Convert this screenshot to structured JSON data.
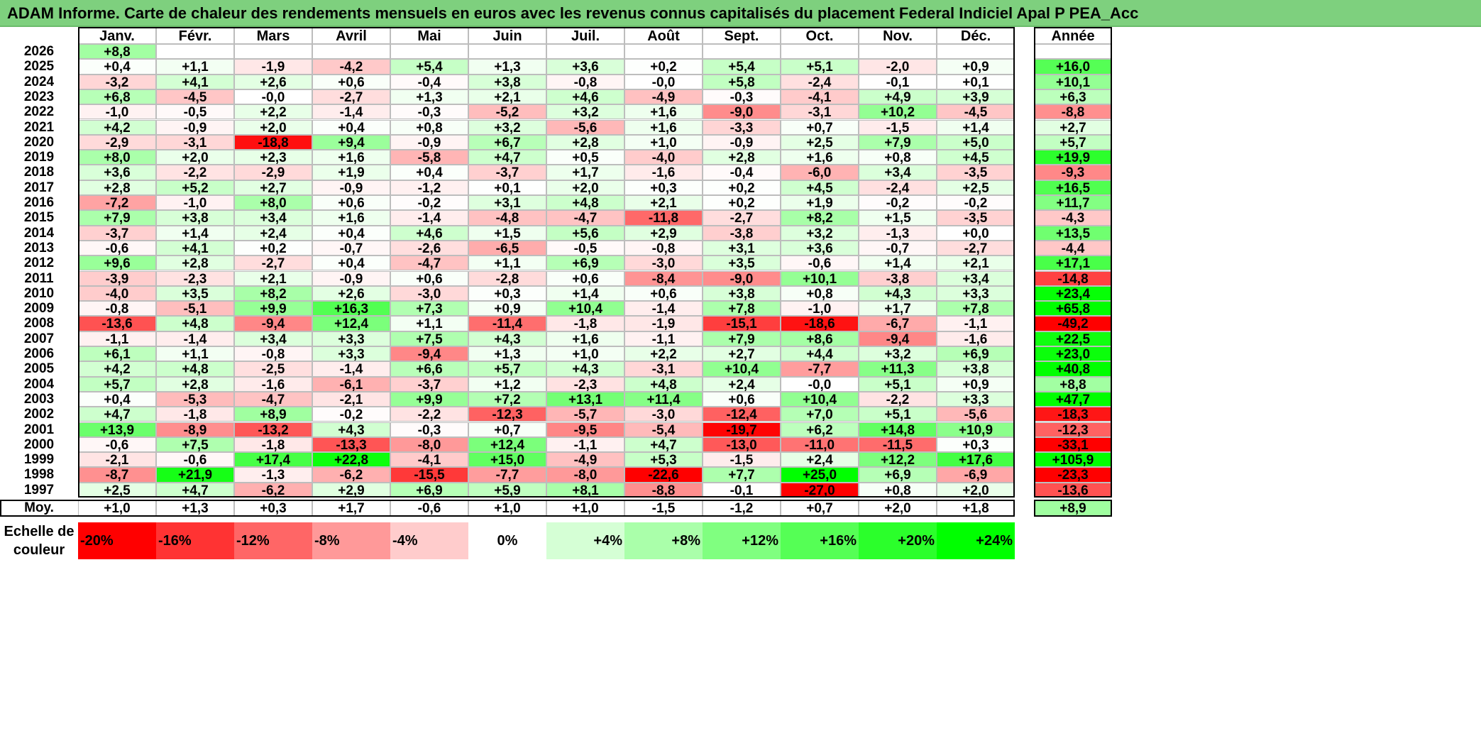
{
  "title": "ADAM Informe. Carte de chaleur des rendements mensuels en euros avec les revenus connus capitalisés du placement Federal Indiciel Apal P PEA_Acc",
  "chart_data": {
    "type": "heatmap",
    "columns": [
      "Janv.",
      "Févr.",
      "Mars",
      "Avril",
      "Mai",
      "Juin",
      "Juil.",
      "Août",
      "Sept.",
      "Oct.",
      "Nov.",
      "Déc."
    ],
    "annual_label": "Année",
    "rows": [
      {
        "year": "2026",
        "months": [
          "+8,8",
          "",
          "",
          "",
          "",
          "",
          "",
          "",
          "",
          "",
          "",
          ""
        ],
        "annual": ""
      },
      {
        "year": "2025",
        "months": [
          "+0,4",
          "+1,1",
          "-1,9",
          "-4,2",
          "+5,4",
          "+1,3",
          "+3,6",
          "+0,2",
          "+5,4",
          "+5,1",
          "-2,0",
          "+0,9"
        ],
        "annual": "+16,0"
      },
      {
        "year": "2024",
        "months": [
          "-3,2",
          "+4,1",
          "+2,6",
          "+0,6",
          "-0,4",
          "+3,8",
          "-0,8",
          "-0,0",
          "+5,8",
          "-2,4",
          "-0,1",
          "+0,1"
        ],
        "annual": "+10,1"
      },
      {
        "year": "2023",
        "months": [
          "+6,8",
          "-4,5",
          "-0,0",
          "-2,7",
          "+1,3",
          "+2,1",
          "+4,6",
          "-4,9",
          "-0,3",
          "-4,1",
          "+4,9",
          "+3,9"
        ],
        "annual": "+6,3"
      },
      {
        "year": "2022",
        "months": [
          "-1,0",
          "-0,5",
          "+2,2",
          "-1,4",
          "-0,3",
          "-5,2",
          "+3,2",
          "+1,6",
          "-9,0",
          "-3,1",
          "+10,2",
          "-4,5"
        ],
        "annual": "-8,8"
      },
      {
        "year": "2021",
        "months": [
          "+4,2",
          "-0,9",
          "+2,0",
          "+0,4",
          "+0,8",
          "+3,2",
          "-5,6",
          "+1,6",
          "-3,3",
          "+0,7",
          "-1,5",
          "+1,4"
        ],
        "annual": "+2,7"
      },
      {
        "year": "2020",
        "months": [
          "-2,9",
          "-3,1",
          "-18,8",
          "+9,4",
          "-0,9",
          "+6,7",
          "+2,8",
          "+1,0",
          "-0,9",
          "+2,5",
          "+7,9",
          "+5,0"
        ],
        "annual": "+5,7"
      },
      {
        "year": "2019",
        "months": [
          "+8,0",
          "+2,0",
          "+2,3",
          "+1,6",
          "-5,8",
          "+4,7",
          "+0,5",
          "-4,0",
          "+2,8",
          "+1,6",
          "+0,8",
          "+4,5"
        ],
        "annual": "+19,9"
      },
      {
        "year": "2018",
        "months": [
          "+3,6",
          "-2,2",
          "-2,9",
          "+1,9",
          "+0,4",
          "-3,7",
          "+1,7",
          "-1,6",
          "-0,4",
          "-6,0",
          "+3,4",
          "-3,5"
        ],
        "annual": "-9,3"
      },
      {
        "year": "2017",
        "months": [
          "+2,8",
          "+5,2",
          "+2,7",
          "-0,9",
          "-1,2",
          "+0,1",
          "+2,0",
          "+0,3",
          "+0,2",
          "+4,5",
          "-2,4",
          "+2,5"
        ],
        "annual": "+16,5"
      },
      {
        "year": "2016",
        "months": [
          "-7,2",
          "-1,0",
          "+8,0",
          "+0,6",
          "-0,2",
          "+3,1",
          "+4,8",
          "+2,1",
          "+0,2",
          "+1,9",
          "-0,2",
          "-0,2"
        ],
        "annual": "+11,7"
      },
      {
        "year": "2015",
        "months": [
          "+7,9",
          "+3,8",
          "+3,4",
          "+1,6",
          "-1,4",
          "-4,8",
          "-4,7",
          "-11,8",
          "-2,7",
          "+8,2",
          "+1,5",
          "-3,5"
        ],
        "annual": "-4,3"
      },
      {
        "year": "2014",
        "months": [
          "-3,7",
          "+1,4",
          "+2,4",
          "+0,4",
          "+4,6",
          "+1,5",
          "+5,6",
          "+2,9",
          "-3,8",
          "+3,2",
          "-1,3",
          "+0,0"
        ],
        "annual": "+13,5"
      },
      {
        "year": "2013",
        "months": [
          "-0,6",
          "+4,1",
          "+0,2",
          "-0,7",
          "-2,6",
          "-6,5",
          "-0,5",
          "-0,8",
          "+3,1",
          "+3,6",
          "-0,7",
          "-2,7"
        ],
        "annual": "-4,4"
      },
      {
        "year": "2012",
        "months": [
          "+9,6",
          "+2,8",
          "-2,7",
          "+0,4",
          "-4,7",
          "+1,1",
          "+6,9",
          "-3,0",
          "+3,5",
          "-0,6",
          "+1,4",
          "+2,1"
        ],
        "annual": "+17,1"
      },
      {
        "year": "2011",
        "months": [
          "-3,9",
          "-2,3",
          "+2,1",
          "-0,9",
          "+0,6",
          "-2,8",
          "+0,6",
          "-8,4",
          "-9,0",
          "+10,1",
          "-3,8",
          "+3,4"
        ],
        "annual": "-14,8"
      },
      {
        "year": "2010",
        "months": [
          "-4,0",
          "+3,5",
          "+8,2",
          "+2,6",
          "-3,0",
          "+0,3",
          "+1,4",
          "+0,6",
          "+3,8",
          "+0,8",
          "+4,3",
          "+3,3"
        ],
        "annual": "+23,4"
      },
      {
        "year": "2009",
        "months": [
          "-0,8",
          "-5,1",
          "+9,9",
          "+16,3",
          "+7,3",
          "+0,9",
          "+10,4",
          "-1,4",
          "+7,8",
          "-1,0",
          "+1,7",
          "+7,8"
        ],
        "annual": "+65,8"
      },
      {
        "year": "2008",
        "months": [
          "-13,6",
          "+4,8",
          "-9,4",
          "+12,4",
          "+1,1",
          "-11,4",
          "-1,8",
          "-1,9",
          "-15,1",
          "-18,6",
          "-6,7",
          "-1,1"
        ],
        "annual": "-49,2"
      },
      {
        "year": "2007",
        "months": [
          "-1,1",
          "-1,4",
          "+3,4",
          "+3,3",
          "+7,5",
          "+4,3",
          "+1,6",
          "-1,1",
          "+7,9",
          "+8,6",
          "-9,4",
          "-1,6"
        ],
        "annual": "+22,5"
      },
      {
        "year": "2006",
        "months": [
          "+6,1",
          "+1,1",
          "-0,8",
          "+3,3",
          "-9,4",
          "+1,3",
          "+1,0",
          "+2,2",
          "+2,7",
          "+4,4",
          "+3,2",
          "+6,9"
        ],
        "annual": "+23,0"
      },
      {
        "year": "2005",
        "months": [
          "+4,2",
          "+4,8",
          "-2,5",
          "-1,4",
          "+6,6",
          "+5,7",
          "+4,3",
          "-3,1",
          "+10,4",
          "-7,7",
          "+11,3",
          "+3,8"
        ],
        "annual": "+40,8"
      },
      {
        "year": "2004",
        "months": [
          "+5,7",
          "+2,8",
          "-1,6",
          "-6,1",
          "-3,7",
          "+1,2",
          "-2,3",
          "+4,8",
          "+2,4",
          "-0,0",
          "+5,1",
          "+0,9"
        ],
        "annual": "+8,8"
      },
      {
        "year": "2003",
        "months": [
          "+0,4",
          "-5,3",
          "-4,7",
          "-2,1",
          "+9,9",
          "+7,2",
          "+13,1",
          "+11,4",
          "+0,6",
          "+10,4",
          "-2,2",
          "+3,3"
        ],
        "annual": "+47,7"
      },
      {
        "year": "2002",
        "months": [
          "+4,7",
          "-1,8",
          "+8,9",
          "-0,2",
          "-2,2",
          "-12,3",
          "-5,7",
          "-3,0",
          "-12,4",
          "+7,0",
          "+5,1",
          "-5,6"
        ],
        "annual": "-18,3"
      },
      {
        "year": "2001",
        "months": [
          "+13,9",
          "-8,9",
          "-13,2",
          "+4,3",
          "-0,3",
          "+0,7",
          "-9,5",
          "-5,4",
          "-19,7",
          "+6,2",
          "+14,8",
          "+10,9"
        ],
        "annual": "-12,3"
      },
      {
        "year": "2000",
        "months": [
          "-0,6",
          "+7,5",
          "-1,8",
          "-13,3",
          "-8,0",
          "+12,4",
          "-1,1",
          "+4,7",
          "-13,0",
          "-11,0",
          "-11,5",
          "+0,3"
        ],
        "annual": "-33,1"
      },
      {
        "year": "1999",
        "months": [
          "-2,1",
          "-0,6",
          "+17,4",
          "+22,8",
          "-4,1",
          "+15,0",
          "-4,9",
          "+5,3",
          "-1,5",
          "+2,4",
          "+12,2",
          "+17,6"
        ],
        "annual": "+105,9"
      },
      {
        "year": "1998",
        "months": [
          "-8,7",
          "+21,9",
          "-1,3",
          "-6,2",
          "-15,5",
          "-7,7",
          "-8,0",
          "-22,6",
          "+7,7",
          "+25,0",
          "+6,9",
          "-6,9"
        ],
        "annual": "-23,3"
      },
      {
        "year": "1997",
        "months": [
          "+2,5",
          "+4,7",
          "-6,2",
          "+2,9",
          "+6,9",
          "+5,9",
          "+8,1",
          "-8,8",
          "-0,1",
          "-27,0",
          "+0,8",
          "+2,0"
        ],
        "annual": "-13,6"
      }
    ],
    "average": {
      "label": "Moy.",
      "months": [
        "+1,0",
        "+1,3",
        "+0,3",
        "+1,7",
        "-0,6",
        "+1,0",
        "+1,0",
        "-1,5",
        "-1,2",
        "+0,7",
        "+2,0",
        "+1,8"
      ],
      "annual": "+8,9"
    },
    "color_scale": {
      "label_line1": "Echelle de",
      "label_line2": "couleur",
      "steps": [
        {
          "label": "-20%",
          "value": -20
        },
        {
          "label": "-16%",
          "value": -16
        },
        {
          "label": "-12%",
          "value": -12
        },
        {
          "label": "-8%",
          "value": -8
        },
        {
          "label": "-4%",
          "value": -4
        },
        {
          "label": "0%",
          "value": 0
        },
        {
          "label": "+4%",
          "value": 4
        },
        {
          "label": "+8%",
          "value": 8
        },
        {
          "label": "+12%",
          "value": 12
        },
        {
          "label": "+16%",
          "value": 16
        },
        {
          "label": "+20%",
          "value": 20
        },
        {
          "label": "+24%",
          "value": 24
        }
      ]
    },
    "colors": {
      "negative_max": "#ff0000",
      "neutral": "#ffffff",
      "positive_max": "#00ff00",
      "title_bg": "#7ed07e"
    }
  }
}
